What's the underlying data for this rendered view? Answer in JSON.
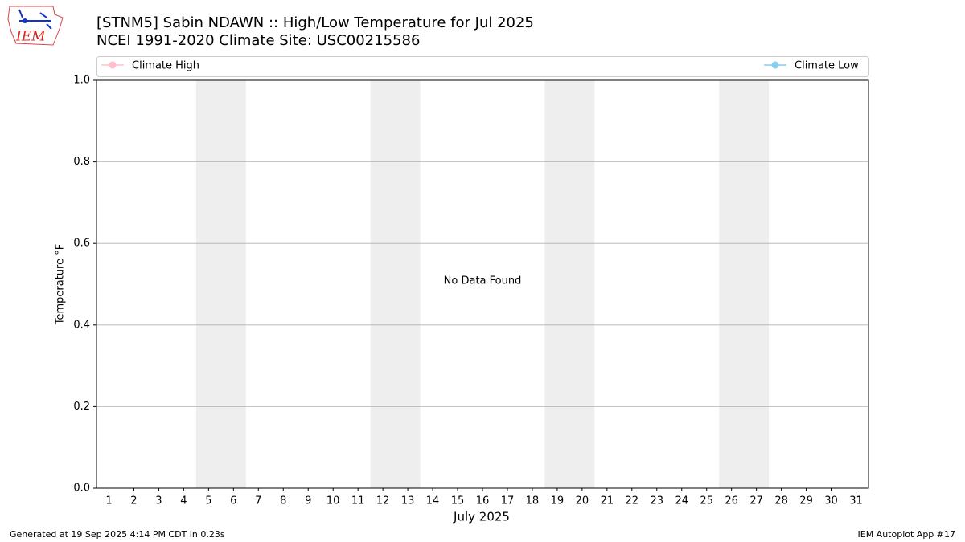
{
  "chart_data": {
    "type": "line",
    "title": "[STNM5] Sabin NDAWN :: High/Low Temperature for Jul 2025",
    "subtitle": "NCEI 1991-2020 Climate Site: USC00215586",
    "x_label": "July 2025",
    "y_label": "Temperature °F",
    "annotation": "No Data Found",
    "x": [
      1,
      2,
      3,
      4,
      5,
      6,
      7,
      8,
      9,
      10,
      11,
      12,
      13,
      14,
      15,
      16,
      17,
      18,
      19,
      20,
      21,
      22,
      23,
      24,
      25,
      26,
      27,
      28,
      29,
      30,
      31
    ],
    "series": [
      {
        "name": "Climate High",
        "color": "#ffc0cb",
        "values": [
          null,
          null,
          null,
          null,
          null,
          null,
          null,
          null,
          null,
          null,
          null,
          null,
          null,
          null,
          null,
          null,
          null,
          null,
          null,
          null,
          null,
          null,
          null,
          null,
          null,
          null,
          null,
          null,
          null,
          null,
          null
        ]
      },
      {
        "name": "Climate Low",
        "color": "#87ceeb",
        "values": [
          null,
          null,
          null,
          null,
          null,
          null,
          null,
          null,
          null,
          null,
          null,
          null,
          null,
          null,
          null,
          null,
          null,
          null,
          null,
          null,
          null,
          null,
          null,
          null,
          null,
          null,
          null,
          null,
          null,
          null,
          null
        ]
      }
    ],
    "xlim": [
      0.5,
      31.5
    ],
    "xticks": [
      1,
      2,
      3,
      4,
      5,
      6,
      7,
      8,
      9,
      10,
      11,
      12,
      13,
      14,
      15,
      16,
      17,
      18,
      19,
      20,
      21,
      22,
      23,
      24,
      25,
      26,
      27,
      28,
      29,
      30,
      31
    ],
    "ylim": [
      0,
      1
    ],
    "yticks": [
      {
        "value": 0,
        "label": "0.0"
      },
      0.2,
      0.4,
      0.6,
      0.8,
      {
        "value": 1,
        "label": "1.0"
      }
    ],
    "grid": true,
    "shaded_spans": [
      [
        4.5,
        6.5
      ],
      [
        11.5,
        13.5
      ],
      [
        18.5,
        20.5
      ],
      [
        25.5,
        27.5
      ]
    ],
    "shade_color": "#eeeeee"
  },
  "logo_text": "IEM",
  "footer": {
    "left": "Generated at 19 Sep 2025 4:14 PM CDT in 0.23s",
    "right": "IEM Autoplot App #17"
  }
}
